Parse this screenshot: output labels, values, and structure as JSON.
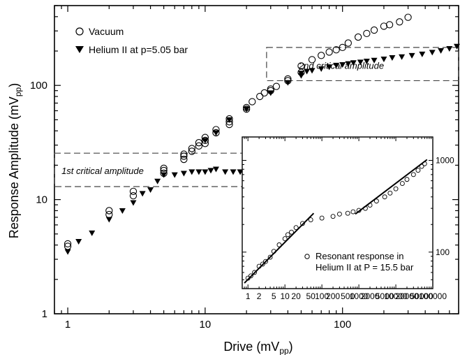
{
  "chart_data": [
    {
      "type": "scatter",
      "xlabel": "Drive (mV",
      "xlabel_sub": "pp",
      "xlabel_end": ")",
      "ylabel": "Response Amplitude (mV",
      "ylabel_sub": "pp",
      "ylabel_end": ")",
      "x_scale": "log",
      "y_scale": "log",
      "xlim": [
        0.8,
        700
      ],
      "ylim": [
        1,
        500
      ],
      "x_ticks": [
        {
          "value": 1,
          "label": "1"
        },
        {
          "value": 10,
          "label": "10"
        },
        {
          "value": 100,
          "label": "100"
        }
      ],
      "y_ticks": [
        {
          "value": 1,
          "label": "1"
        },
        {
          "value": 10,
          "label": "10"
        },
        {
          "value": 100,
          "label": "100"
        }
      ],
      "grid": false,
      "legend_position": "top-left",
      "series": [
        {
          "name": "Vacuum",
          "marker": "open-circle",
          "points": [
            [
              1,
              3.9
            ],
            [
              1,
              4.1
            ],
            [
              2,
              7.4
            ],
            [
              2,
              8.0
            ],
            [
              3,
              10.8
            ],
            [
              3,
              11.8
            ],
            [
              5,
              17.0
            ],
            [
              5,
              18.0
            ],
            [
              5,
              18.8
            ],
            [
              7,
              22.5
            ],
            [
              7,
              24.0
            ],
            [
              7,
              25.0
            ],
            [
              8,
              26.5
            ],
            [
              8,
              28.0
            ],
            [
              9,
              29.5
            ],
            [
              9,
              31.5
            ],
            [
              10,
              31.0
            ],
            [
              10,
              33.0
            ],
            [
              10,
              35.0
            ],
            [
              12,
              38.5
            ],
            [
              12,
              41.0
            ],
            [
              15,
              45.5
            ],
            [
              15,
              48.0
            ],
            [
              15,
              51.0
            ],
            [
              20,
              62.0
            ],
            [
              20,
              64.0
            ],
            [
              22,
              72.0
            ],
            [
              25,
              80.0
            ],
            [
              27,
              86.0
            ],
            [
              30,
              90.0
            ],
            [
              30,
              93.0
            ],
            [
              33,
              98.0
            ],
            [
              40,
              110.0
            ],
            [
              40,
              114.0
            ],
            [
              50,
              130.0
            ],
            [
              50,
              148.0
            ],
            [
              60,
              168.0
            ],
            [
              70,
              183.0
            ],
            [
              80,
              196.0
            ],
            [
              90,
              205.0
            ],
            [
              100,
              215.0
            ],
            [
              110,
              235.0
            ],
            [
              130,
              265.0
            ],
            [
              150,
              285.0
            ],
            [
              170,
              305.0
            ],
            [
              200,
              330.0
            ],
            [
              220,
              340.0
            ],
            [
              260,
              360.0
            ],
            [
              300,
              395.0
            ]
          ]
        },
        {
          "name": "Helium II at p=5.05 bar",
          "marker": "filled-triangle-down",
          "points": [
            [
              1,
              3.5
            ],
            [
              1.2,
              4.3
            ],
            [
              1.5,
              5.1
            ],
            [
              2,
              6.7
            ],
            [
              2.5,
              8.0
            ],
            [
              3,
              9.4
            ],
            [
              3.5,
              11.3
            ],
            [
              4,
              12.2
            ],
            [
              4.5,
              14.5
            ],
            [
              5,
              16.5
            ],
            [
              6,
              16.5
            ],
            [
              7,
              17.0
            ],
            [
              8,
              17.5
            ],
            [
              9,
              17.5
            ],
            [
              10,
              17.5
            ],
            [
              11,
              18.0
            ],
            [
              12,
              18.5
            ],
            [
              14,
              17.5
            ],
            [
              16,
              17.5
            ],
            [
              18,
              17.5
            ],
            [
              10,
              33.0
            ],
            [
              12,
              38.5
            ],
            [
              15,
              50.0
            ],
            [
              20,
              62.0
            ],
            [
              30,
              86.0
            ],
            [
              40,
              106.0
            ],
            [
              50,
              122.0
            ],
            [
              50,
              128.0
            ],
            [
              55,
              133.0
            ],
            [
              60,
              135.0
            ],
            [
              70,
              140.0
            ],
            [
              80,
              145.0
            ],
            [
              90,
              150.0
            ],
            [
              100,
              152.0
            ],
            [
              110,
              155.0
            ],
            [
              120,
              158.0
            ],
            [
              135,
              160.0
            ],
            [
              150,
              163.0
            ],
            [
              170,
              166.0
            ],
            [
              200,
              170.0
            ],
            [
              230,
              175.0
            ],
            [
              270,
              178.0
            ],
            [
              320,
              183.0
            ],
            [
              380,
              188.0
            ],
            [
              450,
              195.0
            ],
            [
              520,
              202.0
            ],
            [
              600,
              210.0
            ],
            [
              680,
              220.0
            ]
          ]
        }
      ],
      "annotations": [
        {
          "text": "1st critical amplitude"
        },
        {
          "text": "2nd critical amplitude"
        }
      ],
      "boxes": [
        {
          "x_range": [
            0.8,
            20
          ],
          "y_range": [
            13,
            25.5
          ],
          "style": "dashed"
        },
        {
          "x_range": [
            28,
            700
          ],
          "y_range": [
            110,
            215
          ],
          "style": "dashed"
        }
      ]
    },
    {
      "type": "scatter",
      "x_scale": "log",
      "y_scale": "log",
      "xlim": [
        0.7,
        100000
      ],
      "ylim": [
        40,
        1800
      ],
      "x_ticks": [
        {
          "value": 1,
          "label": "1"
        },
        {
          "value": 2,
          "label": "2"
        },
        {
          "value": 5,
          "label": "5"
        },
        {
          "value": 10,
          "label": "10"
        },
        {
          "value": 20,
          "label": "20"
        },
        {
          "value": 50,
          "label": "50"
        },
        {
          "value": 100,
          "label": "100"
        },
        {
          "value": 200,
          "label": "200"
        },
        {
          "value": 500,
          "label": "500"
        },
        {
          "value": 1000,
          "label": "1000"
        },
        {
          "value": 2000,
          "label": "2000"
        },
        {
          "value": 5000,
          "label": "5000"
        },
        {
          "value": 10000,
          "label": "10000"
        },
        {
          "value": 20000,
          "label": "20000"
        },
        {
          "value": 50000,
          "label": "50000"
        },
        {
          "value": 100000,
          "label": "100000"
        }
      ],
      "y_ticks_left": [],
      "y_ticks_right": [
        {
          "value": 100,
          "label": "100"
        },
        {
          "value": 1000,
          "label": "1000"
        }
      ],
      "legend_position": "lower-right",
      "series": [
        {
          "name": "Resonant response in\nHelium II at P = 15.5 bar",
          "name_line1": "Resonant response in",
          "name_line2": "Helium II at P = 15.5 bar",
          "marker": "open-circle-small",
          "points": [
            [
              1,
              52
            ],
            [
              1.2,
              55
            ],
            [
              1.5,
              60
            ],
            [
              2,
              70
            ],
            [
              2.5,
              74
            ],
            [
              3,
              79
            ],
            [
              4,
              88
            ],
            [
              5,
              102
            ],
            [
              7,
              120
            ],
            [
              10,
              140
            ],
            [
              12,
              155
            ],
            [
              15,
              165
            ],
            [
              20,
              185
            ],
            [
              30,
              205
            ],
            [
              50,
              225
            ],
            [
              100,
              235
            ],
            [
              200,
              245
            ],
            [
              300,
              260
            ],
            [
              500,
              265
            ],
            [
              700,
              275
            ],
            [
              1000,
              285
            ],
            [
              1500,
              300
            ],
            [
              2000,
              325
            ],
            [
              3000,
              360
            ],
            [
              5000,
              400
            ],
            [
              7000,
              440
            ],
            [
              10000,
              490
            ],
            [
              15000,
              560
            ],
            [
              20000,
              620
            ],
            [
              30000,
              700
            ],
            [
              40000,
              780
            ],
            [
              50000,
              860
            ],
            [
              60000,
              920
            ]
          ]
        }
      ],
      "fit_lines": [
        {
          "from": [
            0.8,
            46
          ],
          "to": [
            60,
            265
          ]
        },
        {
          "from": [
            800,
            260
          ],
          "to": [
            70000,
            1020
          ]
        }
      ]
    }
  ]
}
